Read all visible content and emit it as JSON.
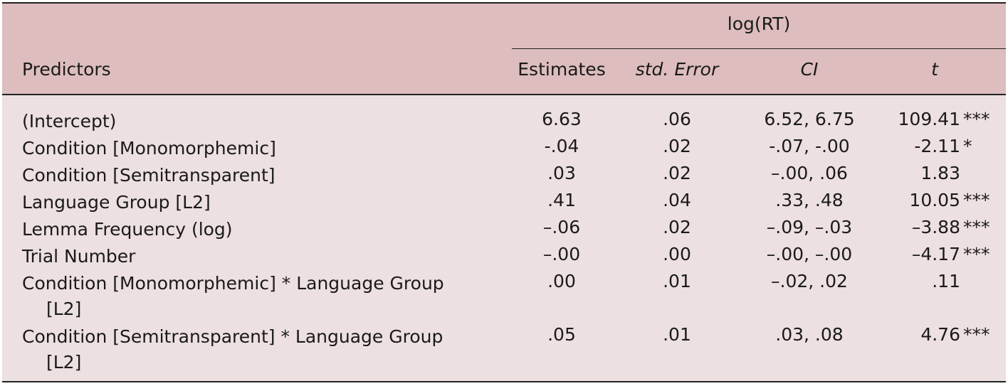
{
  "table": {
    "group_header": "log(RT)",
    "columns": {
      "predictors": "Predictors",
      "estimates": "Estimates",
      "std_error": "std. Error",
      "ci": "CI",
      "t": "t"
    },
    "rows": [
      {
        "predictor": "(Intercept)",
        "predictor_cont": "",
        "estimate": "6.63",
        "se": ".06",
        "ci": "6.52, 6.75",
        "t": "109.41",
        "sig": "***"
      },
      {
        "predictor": "Condition [Monomorphemic]",
        "predictor_cont": "",
        "estimate": "-.04",
        "se": ".02",
        "ci": "-.07, -.00",
        "t": "-2.11",
        "sig": "*"
      },
      {
        "predictor": "Condition [Semitransparent]",
        "predictor_cont": "",
        "estimate": ".03",
        "se": ".02",
        "ci": "–.00, .06",
        "t": "1.83",
        "sig": ""
      },
      {
        "predictor": "Language Group [L2]",
        "predictor_cont": "",
        "estimate": ".41",
        "se": ".04",
        "ci": ".33, .48",
        "t": "10.05",
        "sig": "***"
      },
      {
        "predictor": "Lemma Frequency (log)",
        "predictor_cont": "",
        "estimate": "–.06",
        "se": ".02",
        "ci": "–.09, –.03",
        "t": "–3.88",
        "sig": "***"
      },
      {
        "predictor": "Trial Number",
        "predictor_cont": "",
        "estimate": "–.00",
        "se": ".00",
        "ci": "–.00, –.00",
        "t": "–4.17",
        "sig": "***"
      },
      {
        "predictor": "Condition [Monomorphemic] * Language Group",
        "predictor_cont": "[L2]",
        "estimate": ".00",
        "se": ".01",
        "ci": "–.02, .02",
        "t": ".11",
        "sig": ""
      },
      {
        "predictor": "Condition [Semitransparent] * Language Group",
        "predictor_cont": "[L2]",
        "estimate": ".05",
        "se": ".01",
        "ci": ".03, .08",
        "t": "4.76",
        "sig": "***"
      }
    ]
  }
}
